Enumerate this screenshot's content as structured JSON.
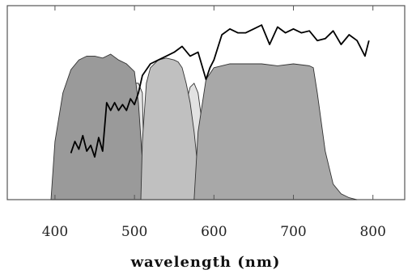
{
  "chart_data": {
    "type": "area",
    "title": "",
    "xlabel": "wavelength (nm)",
    "ylabel": "",
    "xlim": [
      340,
      840
    ],
    "ylim": [
      0,
      100
    ],
    "x_ticks": [
      400,
      500,
      600,
      700,
      800
    ],
    "x_tick_labels": [
      "400",
      "500",
      "600",
      "700",
      "800"
    ],
    "grid": false,
    "legend": "none",
    "filters": [
      {
        "color": "#e2e2e2",
        "x": [
          483,
          490,
          495,
          500,
          505,
          510,
          513,
          560,
          565,
          570,
          575,
          580,
          585,
          590,
          595
        ],
        "y": [
          0,
          35,
          55,
          60,
          60,
          55,
          0,
          0,
          50,
          58,
          60,
          55,
          40,
          20,
          0
        ]
      },
      {
        "color": "#9a9a9a",
        "x": [
          395,
          400,
          410,
          420,
          430,
          440,
          450,
          460,
          470,
          480,
          490,
          500,
          505,
          510,
          515
        ],
        "y": [
          0,
          30,
          55,
          67,
          72,
          74,
          74,
          73,
          75,
          72,
          70,
          66,
          50,
          20,
          0
        ]
      },
      {
        "color": "#c0c0c0",
        "x": [
          508,
          510,
          515,
          520,
          530,
          540,
          550,
          555,
          560,
          565,
          570,
          575,
          580,
          585,
          590
        ],
        "y": [
          0,
          30,
          60,
          68,
          72,
          73,
          72,
          71,
          68,
          60,
          50,
          35,
          15,
          5,
          0
        ]
      },
      {
        "color": "#a8a8a8",
        "x": [
          575,
          580,
          590,
          600,
          620,
          640,
          660,
          680,
          700,
          720,
          725,
          730,
          740,
          750,
          760,
          770,
          780
        ],
        "y": [
          0,
          35,
          62,
          68,
          70,
          70,
          70,
          69,
          70,
          69,
          68,
          55,
          25,
          8,
          3,
          1,
          0
        ]
      }
    ],
    "series": [
      {
        "color": "#000000",
        "x": [
          420,
          425,
          430,
          435,
          440,
          445,
          450,
          455,
          460,
          465,
          470,
          475,
          480,
          485,
          490,
          495,
          500,
          505,
          510,
          520,
          530,
          540,
          550,
          560,
          570,
          580,
          590,
          595,
          600,
          610,
          620,
          630,
          640,
          650,
          660,
          670,
          680,
          690,
          700,
          710,
          720,
          730,
          740,
          750,
          760,
          770,
          780,
          790,
          795
        ],
        "y": [
          24,
          30,
          26,
          33,
          25,
          28,
          22,
          32,
          25,
          50,
          46,
          50,
          46,
          49,
          46,
          52,
          49,
          55,
          64,
          70,
          72,
          74,
          76,
          79,
          74,
          76,
          62,
          68,
          72,
          85,
          88,
          86,
          86,
          88,
          90,
          80,
          89,
          86,
          88,
          86,
          87,
          82,
          83,
          87,
          80,
          85,
          82,
          74,
          82
        ]
      }
    ]
  }
}
